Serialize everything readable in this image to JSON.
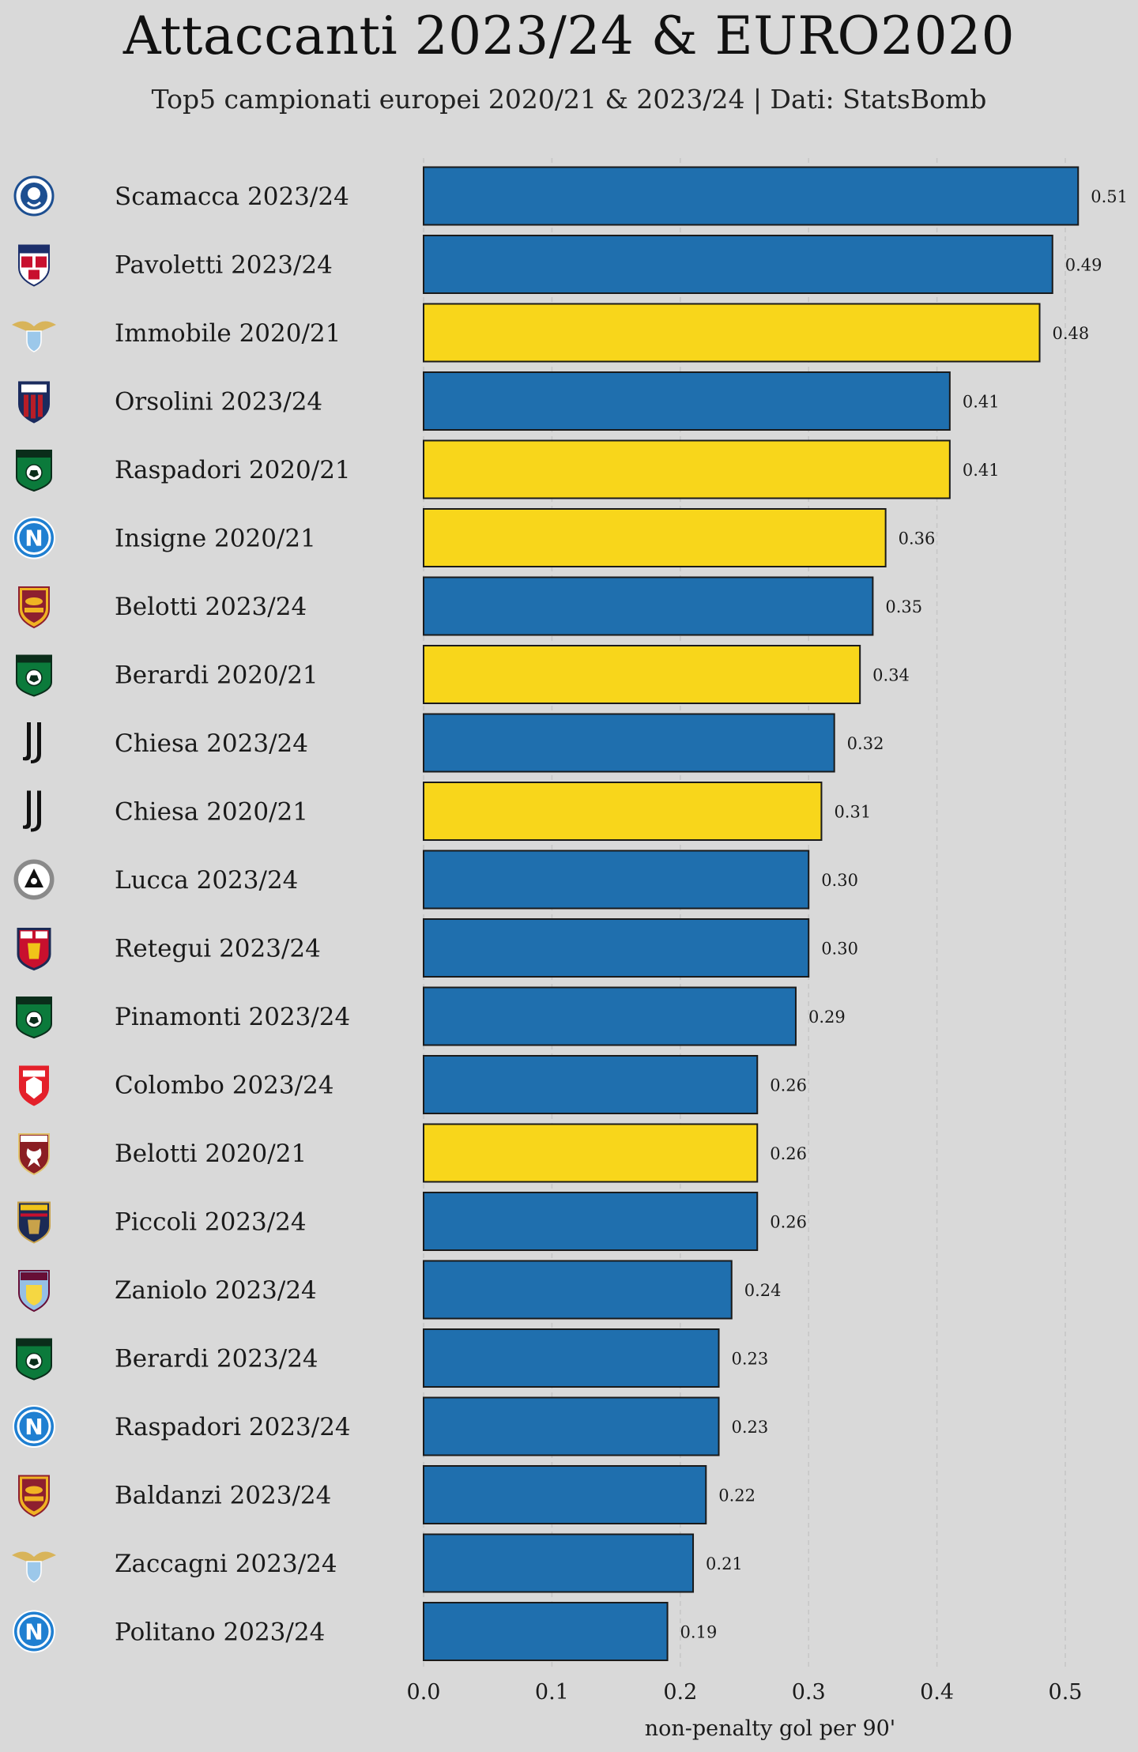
{
  "chart_data": {
    "type": "bar",
    "orientation": "horizontal",
    "title": "Attaccanti 2023/24 & EURO2020",
    "subtitle": "Top5 campionati europei 2020/21 & 2023/24 | Dati: StatsBomb",
    "xlabel": "non-penalty gol per 90'",
    "ylabel": "",
    "xlim": [
      0,
      0.53
    ],
    "xticks": [
      0.0,
      0.1,
      0.2,
      0.3,
      0.4,
      0.5
    ],
    "xtick_labels": [
      "0.0",
      "0.1",
      "0.2",
      "0.3",
      "0.4",
      "0.5"
    ],
    "grid": "vertical dashed",
    "colors": {
      "2023/24": "#1f6fae",
      "2020/21": "#f8d61b",
      "bar_edge": "#1a1a1a",
      "background": "#d9d9d9",
      "grid": "#c6c6c6"
    },
    "bars": [
      {
        "label": "Scamacca 2023/24",
        "value": 0.51,
        "value_label": "0.51",
        "season": "2023/24",
        "club_icon": "atalanta-logo"
      },
      {
        "label": "Pavoletti 2023/24",
        "value": 0.49,
        "value_label": "0.49",
        "season": "2023/24",
        "club_icon": "cagliari-logo"
      },
      {
        "label": "Immobile 2020/21",
        "value": 0.48,
        "value_label": "0.48",
        "season": "2020/21",
        "club_icon": "lazio-logo"
      },
      {
        "label": "Orsolini 2023/24",
        "value": 0.41,
        "value_label": "0.41",
        "season": "2023/24",
        "club_icon": "bologna-logo"
      },
      {
        "label": "Raspadori 2020/21",
        "value": 0.41,
        "value_label": "0.41",
        "season": "2020/21",
        "club_icon": "sassuolo-logo"
      },
      {
        "label": "Insigne 2020/21",
        "value": 0.36,
        "value_label": "0.36",
        "season": "2020/21",
        "club_icon": "napoli-logo"
      },
      {
        "label": "Belotti 2023/24",
        "value": 0.35,
        "value_label": "0.35",
        "season": "2023/24",
        "club_icon": "roma-logo"
      },
      {
        "label": "Berardi 2020/21",
        "value": 0.34,
        "value_label": "0.34",
        "season": "2020/21",
        "club_icon": "sassuolo-logo"
      },
      {
        "label": "Chiesa 2023/24",
        "value": 0.32,
        "value_label": "0.32",
        "season": "2023/24",
        "club_icon": "juventus-logo"
      },
      {
        "label": "Chiesa 2020/21",
        "value": 0.31,
        "value_label": "0.31",
        "season": "2020/21",
        "club_icon": "juventus-logo"
      },
      {
        "label": "Lucca 2023/24",
        "value": 0.3,
        "value_label": "0.30",
        "season": "2023/24",
        "club_icon": "udinese-logo"
      },
      {
        "label": "Retegui 2023/24",
        "value": 0.3,
        "value_label": "0.30",
        "season": "2023/24",
        "club_icon": "genoa-logo"
      },
      {
        "label": "Pinamonti 2023/24",
        "value": 0.29,
        "value_label": "0.29",
        "season": "2023/24",
        "club_icon": "sassuolo-logo"
      },
      {
        "label": "Colombo 2023/24",
        "value": 0.26,
        "value_label": "0.26",
        "season": "2023/24",
        "club_icon": "monza-logo"
      },
      {
        "label": "Belotti 2020/21",
        "value": 0.26,
        "value_label": "0.26",
        "season": "2020/21",
        "club_icon": "torino-logo"
      },
      {
        "label": "Piccoli 2023/24",
        "value": 0.26,
        "value_label": "0.26",
        "season": "2023/24",
        "club_icon": "lecce-logo"
      },
      {
        "label": "Zaniolo 2023/24",
        "value": 0.24,
        "value_label": "0.24",
        "season": "2023/24",
        "club_icon": "aston-villa-logo"
      },
      {
        "label": "Berardi 2023/24",
        "value": 0.23,
        "value_label": "0.23",
        "season": "2023/24",
        "club_icon": "sassuolo-logo"
      },
      {
        "label": "Raspadori 2023/24",
        "value": 0.23,
        "value_label": "0.23",
        "season": "2023/24",
        "club_icon": "napoli-logo"
      },
      {
        "label": "Baldanzi 2023/24",
        "value": 0.22,
        "value_label": "0.22",
        "season": "2023/24",
        "club_icon": "roma-logo"
      },
      {
        "label": "Zaccagni 2023/24",
        "value": 0.21,
        "value_label": "0.21",
        "season": "2023/24",
        "club_icon": "lazio-logo"
      },
      {
        "label": "Politano 2023/24",
        "value": 0.19,
        "value_label": "0.19",
        "season": "2023/24",
        "club_icon": "napoli-logo"
      }
    ]
  }
}
